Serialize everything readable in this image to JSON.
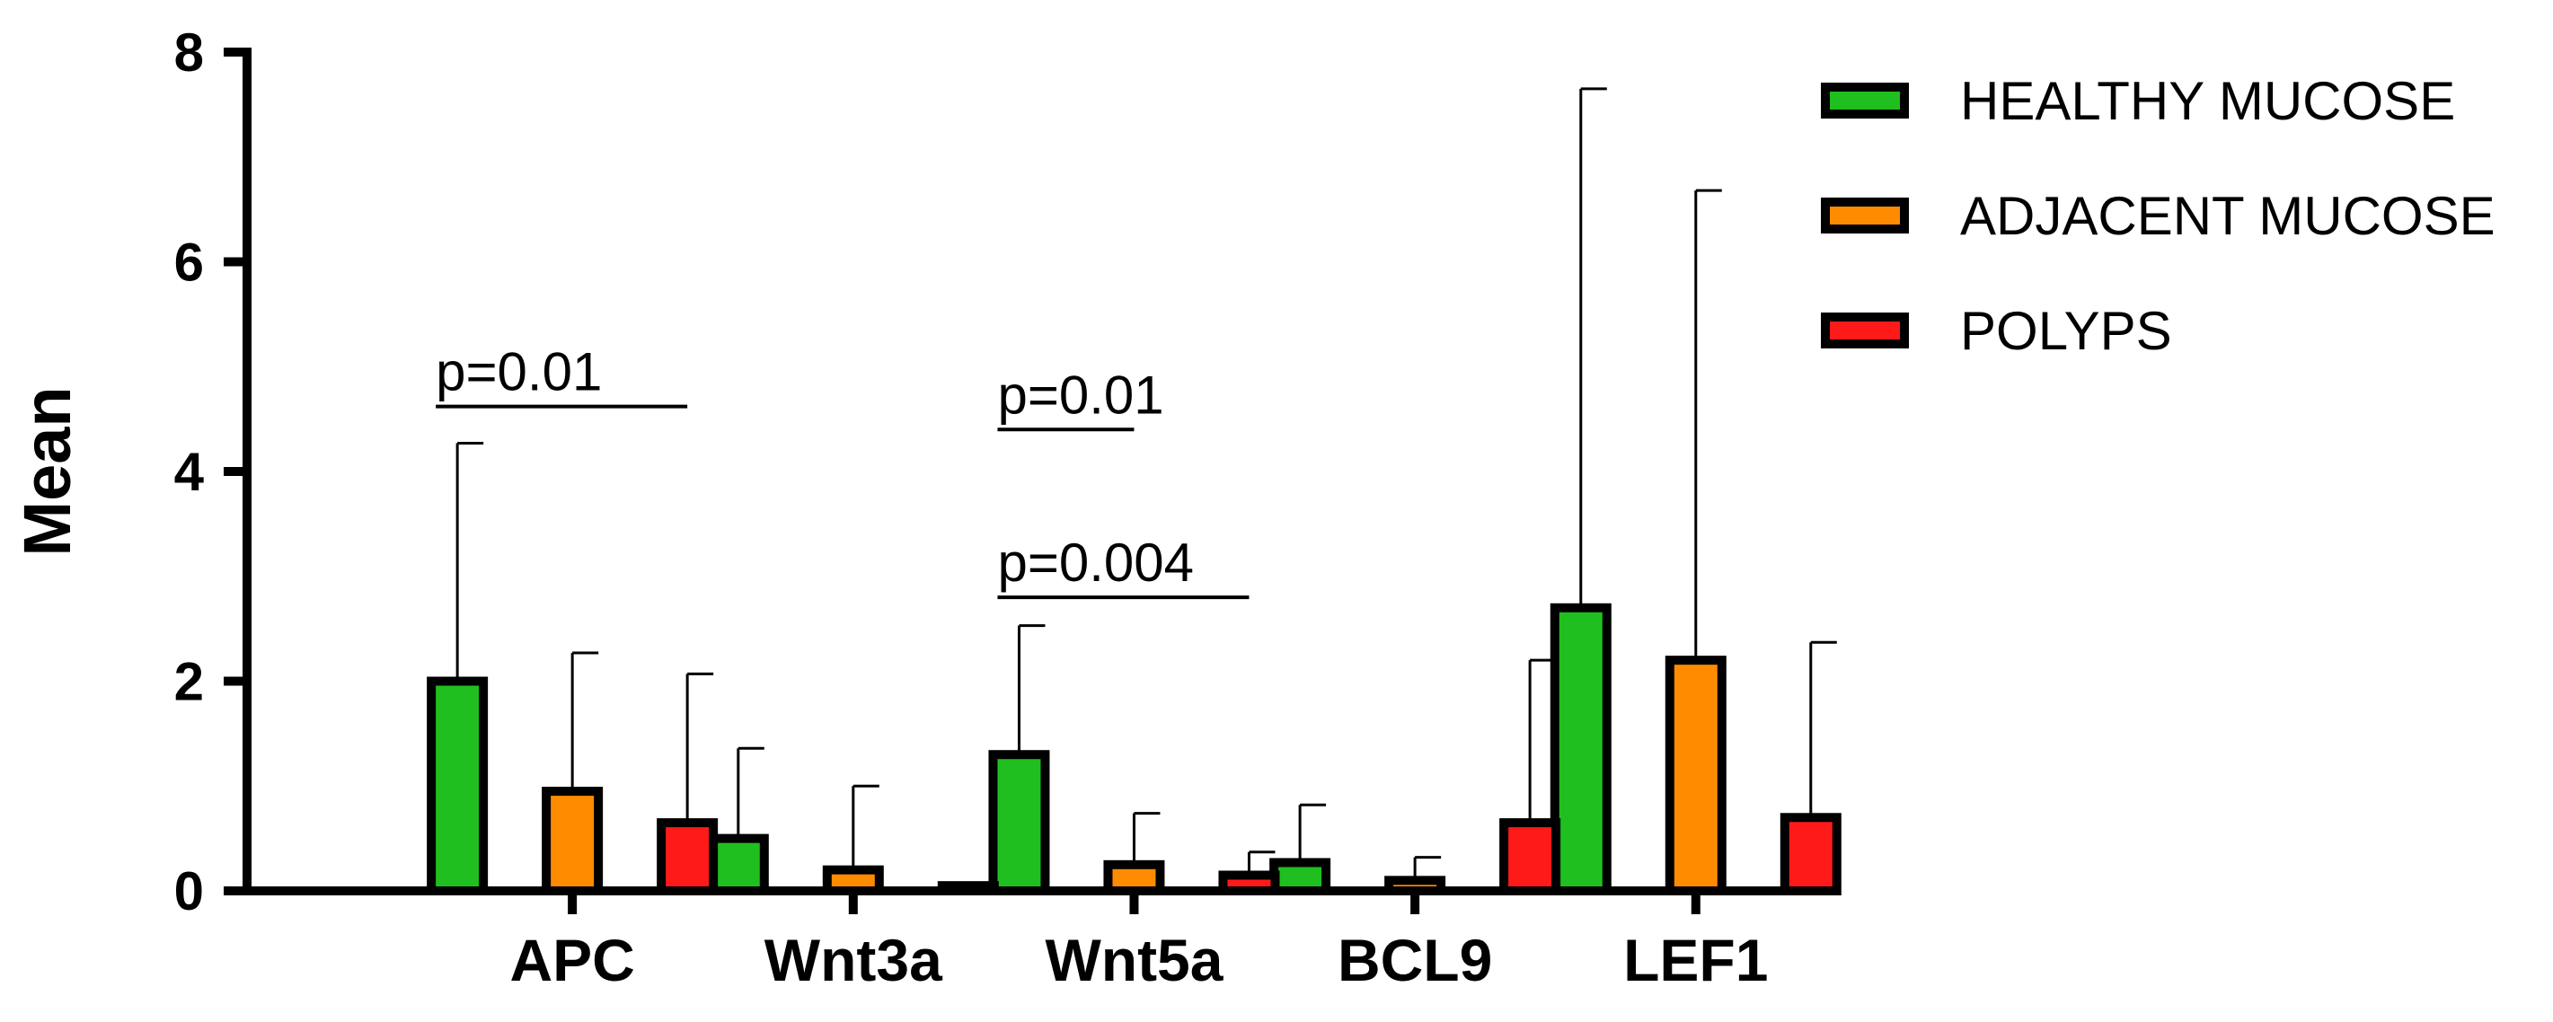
{
  "chart_data": {
    "type": "bar",
    "title": "",
    "xlabel": "",
    "ylabel": "Mean",
    "ylim": [
      0,
      8
    ],
    "yticks": [
      "0",
      "2",
      "4",
      "6",
      "8"
    ],
    "categories": [
      "APC",
      "Wnt3a",
      "Wnt5a",
      "BCL9",
      "LEF1"
    ],
    "series": [
      {
        "name": "HEALTHY MUCOSE",
        "color": "#1fbf1f",
        "values": [
          2.0,
          0.5,
          1.3,
          0.27,
          2.7
        ],
        "error_upper": [
          4.27,
          1.36,
          2.53,
          0.82,
          7.65
        ]
      },
      {
        "name": "ADJACENT MUCOSE",
        "color": "#ff8c00",
        "values": [
          0.95,
          0.2,
          0.25,
          0.1,
          2.2
        ],
        "error_upper": [
          2.27,
          1.0,
          0.74,
          0.32,
          6.68
        ]
      },
      {
        "name": "POLYPS",
        "color": "#ff1a1a",
        "values": [
          0.65,
          0.05,
          0.15,
          0.65,
          0.7
        ],
        "error_upper": [
          2.07,
          0.07,
          0.37,
          2.2,
          2.37
        ]
      }
    ],
    "legend": {
      "position": "top-right"
    },
    "grid": false,
    "annotations": [
      {
        "text": "p=0.01",
        "category": "APC",
        "from_series": 0,
        "to_series": 2,
        "y": 4.62
      },
      {
        "text": "p=0.01",
        "category": "Wnt5a",
        "from_series": 0,
        "to_series": 1,
        "y": 4.4
      },
      {
        "text": "p=0.004",
        "category": "Wnt5a",
        "from_series": 0,
        "to_series": 2,
        "y": 2.8
      }
    ]
  }
}
